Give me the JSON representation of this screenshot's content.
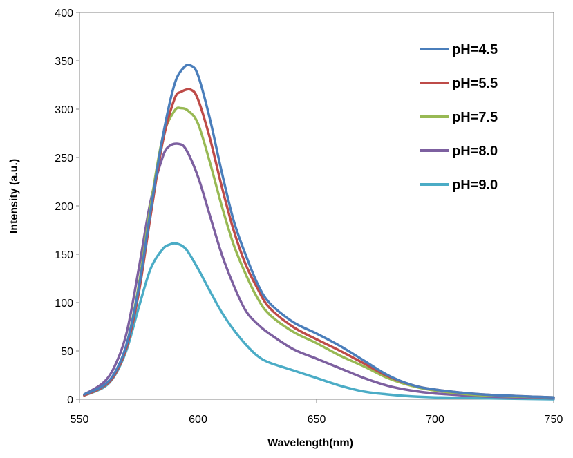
{
  "chart_data": {
    "type": "line",
    "title": "",
    "xlabel": "Wavelength(nm)",
    "ylabel": "Intensity  (a.u.)",
    "xlim": [
      550,
      750
    ],
    "ylim": [
      0,
      400
    ],
    "xticks": [
      550,
      600,
      650,
      700,
      750
    ],
    "yticks": [
      0,
      50,
      100,
      150,
      200,
      250,
      300,
      350,
      400
    ],
    "grid": false,
    "legend_position": "top-right",
    "series": [
      {
        "name": "pH=4.5",
        "color": "#4A7EBB",
        "x": [
          552,
          560,
          565,
          570,
          575,
          580,
          585,
          590,
          594,
          597,
          600,
          605,
          610,
          615,
          620,
          625,
          630,
          640,
          650,
          660,
          670,
          680,
          690,
          700,
          720,
          750
        ],
        "y": [
          5,
          14,
          28,
          58,
          115,
          195,
          270,
          325,
          343,
          345,
          335,
          290,
          235,
          185,
          150,
          120,
          100,
          80,
          68,
          55,
          40,
          25,
          15,
          10,
          5,
          2
        ]
      },
      {
        "name": "pH=5.5",
        "color": "#BE4B48",
        "x": [
          552,
          560,
          565,
          570,
          575,
          580,
          585,
          590,
          593,
          597,
          600,
          605,
          610,
          615,
          620,
          625,
          630,
          640,
          650,
          660,
          670,
          680,
          690,
          700,
          720,
          750
        ],
        "y": [
          4,
          13,
          26,
          55,
          110,
          190,
          265,
          310,
          318,
          320,
          310,
          270,
          220,
          175,
          140,
          115,
          95,
          75,
          62,
          50,
          37,
          24,
          15,
          10,
          5,
          2
        ]
      },
      {
        "name": "pH=7.5",
        "color": "#98B954",
        "x": [
          552,
          560,
          565,
          570,
          575,
          580,
          585,
          590,
          593,
          596,
          600,
          605,
          610,
          615,
          620,
          625,
          630,
          640,
          650,
          660,
          670,
          680,
          690,
          700,
          720,
          750
        ],
        "y": [
          4,
          13,
          27,
          58,
          118,
          200,
          270,
          298,
          301,
          298,
          285,
          245,
          200,
          160,
          130,
          105,
          88,
          70,
          58,
          45,
          34,
          22,
          14,
          9,
          4,
          2
        ]
      },
      {
        "name": "pH=8.0",
        "color": "#7D60A0",
        "x": [
          552,
          560,
          565,
          570,
          575,
          580,
          585,
          588,
          592,
          595,
          600,
          605,
          610,
          615,
          620,
          625,
          630,
          640,
          650,
          660,
          670,
          680,
          690,
          700,
          720,
          750
        ],
        "y": [
          5,
          17,
          35,
          70,
          135,
          205,
          250,
          262,
          264,
          258,
          230,
          190,
          150,
          118,
          92,
          78,
          68,
          52,
          42,
          32,
          22,
          14,
          9,
          6,
          3,
          1
        ]
      },
      {
        "name": "pH=9.0",
        "color": "#4BACC6",
        "x": [
          552,
          560,
          565,
          570,
          575,
          580,
          585,
          588,
          591,
          595,
          600,
          605,
          610,
          615,
          620,
          625,
          630,
          640,
          650,
          660,
          670,
          680,
          690,
          700,
          720,
          750
        ],
        "y": [
          4,
          12,
          25,
          52,
          95,
          135,
          155,
          160,
          161,
          155,
          135,
          112,
          90,
          72,
          57,
          45,
          38,
          30,
          22,
          14,
          8,
          5,
          3,
          2,
          1,
          0
        ]
      }
    ]
  }
}
